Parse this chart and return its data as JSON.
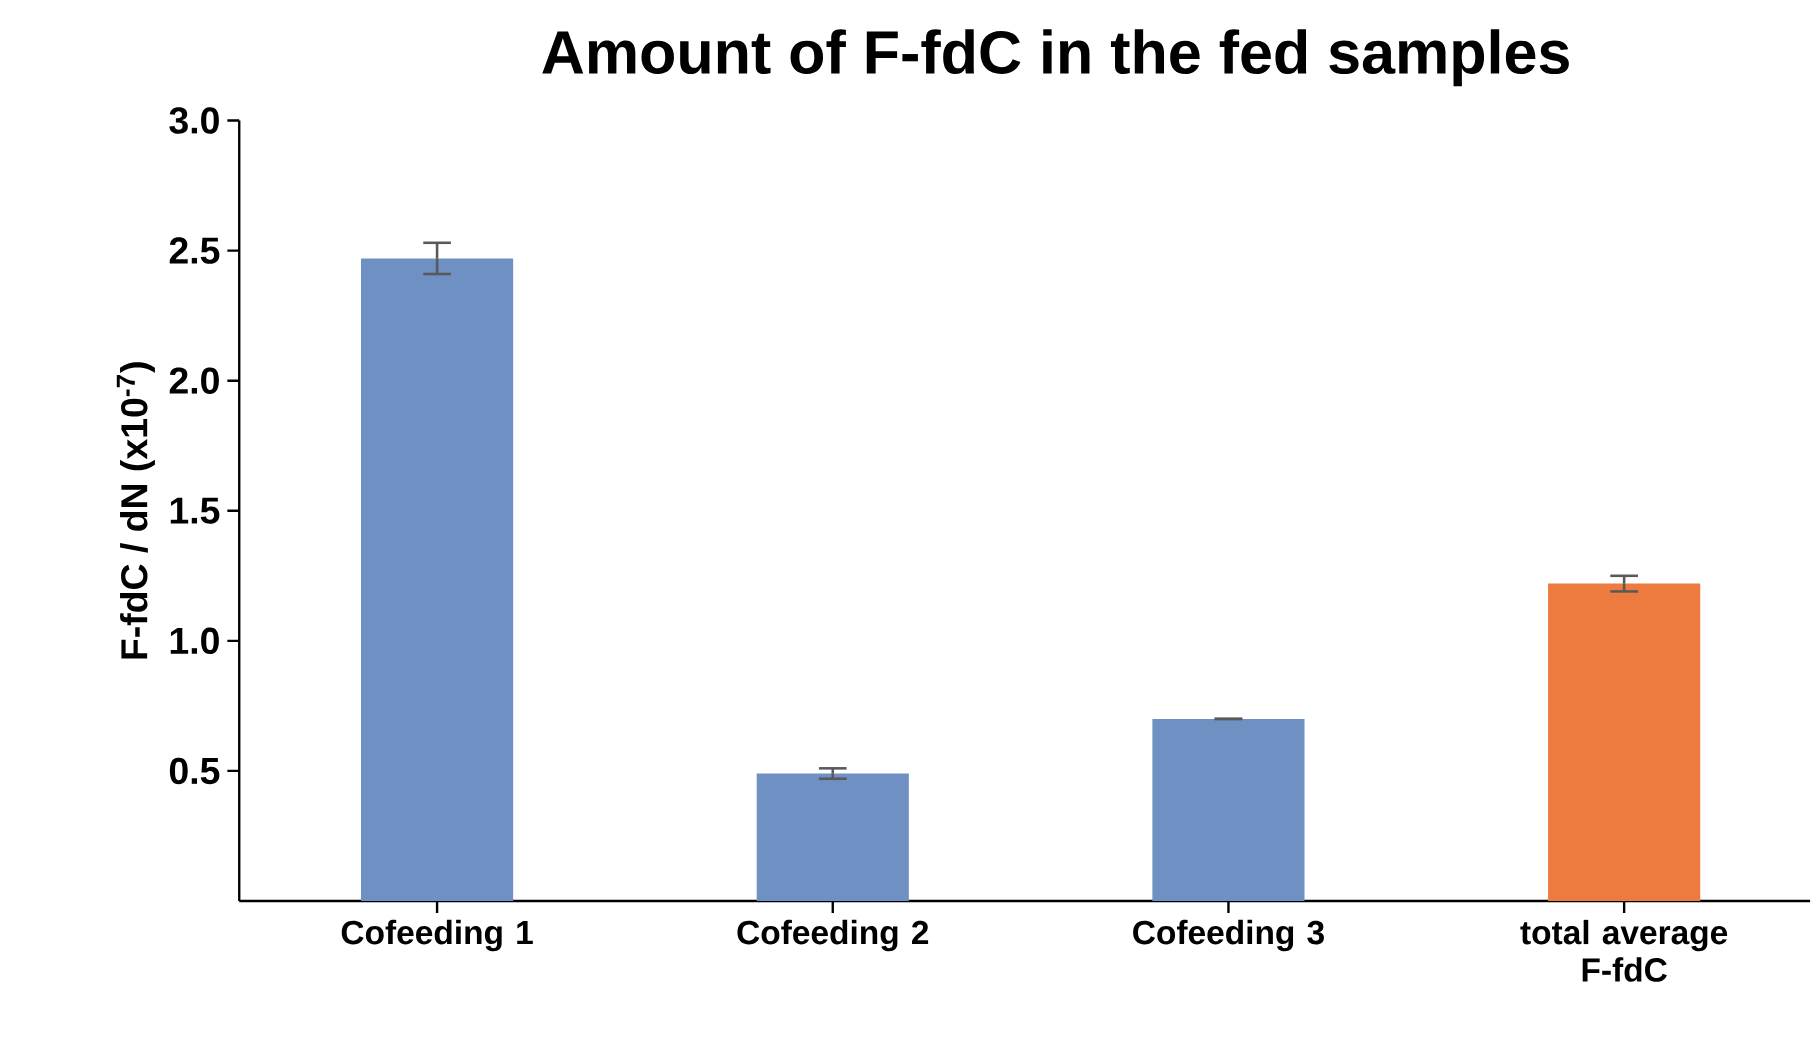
{
  "chart_data": {
    "type": "bar",
    "title": "Amount of F-fdC in the fed samples",
    "ylabel": "F-fdC / dN (x10$^{-7}$)",
    "categories": [
      "Cofeeding 1",
      "Cofeeding 2",
      "Cofeeding 3",
      "total average F-fdC"
    ],
    "values": [
      2.47,
      0.49,
      0.7,
      1.22
    ],
    "errors": [
      0.06,
      0.02,
      0.0,
      0.03
    ],
    "colors": [
      "#6f90c2",
      "#6f90c2",
      "#6f90c2",
      "#ed7b3f"
    ],
    "ylim": [
      0,
      3.0
    ],
    "yticks": [
      0.5,
      {
        "value": 1,
        "label": "1.0"
      },
      1.5,
      {
        "value": 2,
        "label": "2.0"
      },
      2.5,
      {
        "value": 3,
        "label": "3.0"
      }
    ],
    "grid": false
  }
}
